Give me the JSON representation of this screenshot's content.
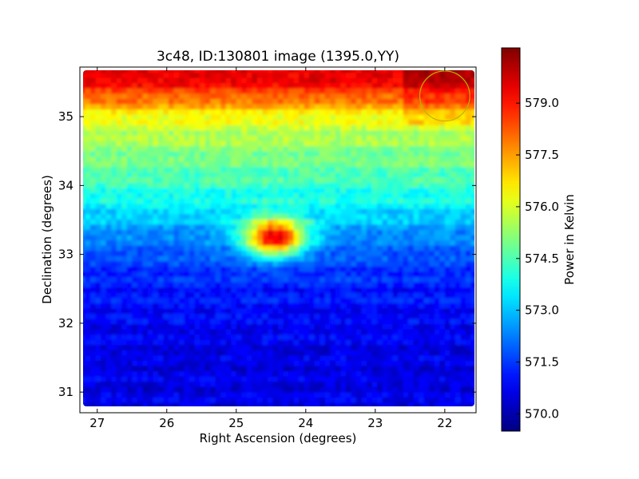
{
  "chart_data": {
    "type": "heatmap",
    "title": "3c48, ID:130801 image (1395.0,YY)",
    "xlabel": "Right Ascension (degrees)",
    "ylabel": "Declination (degrees)",
    "xlim": [
      27.25,
      21.55
    ],
    "ylim": [
      30.7,
      35.72
    ],
    "x_ticks": [
      27,
      26,
      25,
      24,
      23,
      22
    ],
    "y_ticks": [
      31,
      32,
      33,
      34,
      35
    ],
    "colormap": "jet",
    "colorbar": {
      "label": "Power in Kelvin",
      "range": [
        569.5,
        580.6
      ],
      "ticks": [
        "570.0",
        "571.5",
        "573.0",
        "574.5",
        "576.0",
        "577.5",
        "579.0"
      ]
    },
    "dec_profile": {
      "dec": [
        30.8,
        31.5,
        32.0,
        32.5,
        32.9,
        33.2,
        33.5,
        33.8,
        34.2,
        34.6,
        35.0,
        35.2,
        35.4,
        35.6
      ],
      "kelvin": [
        570.6,
        570.6,
        570.8,
        571.1,
        571.6,
        572.2,
        573.0,
        573.8,
        574.6,
        575.3,
        576.3,
        577.6,
        578.8,
        579.6
      ]
    },
    "source": {
      "ra": 24.45,
      "dec": 33.25,
      "peak_kelvin": 579.4
    },
    "marker_circle": {
      "ra": 22.0,
      "dec": 35.3,
      "radius_deg": 0.36,
      "color": "#b5b500"
    }
  }
}
